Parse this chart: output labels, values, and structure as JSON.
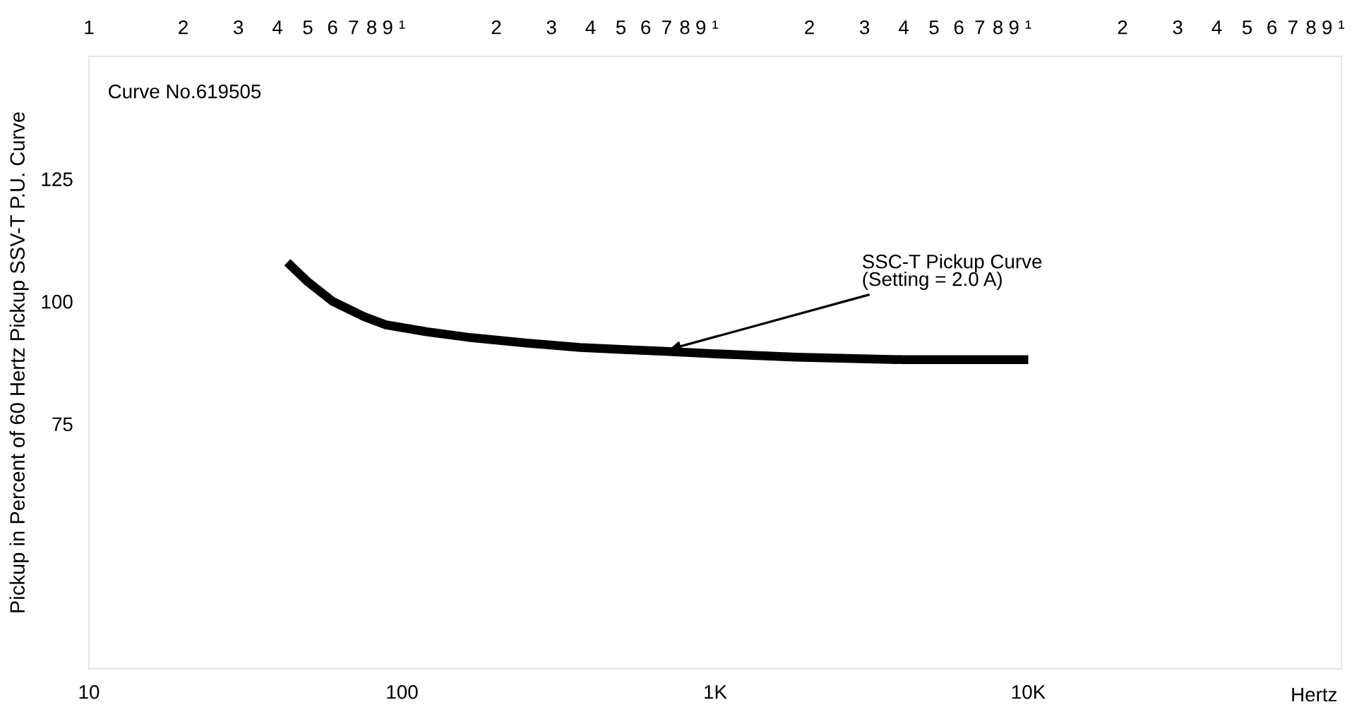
{
  "chart_data": {
    "type": "line",
    "xlabel": "Hertz",
    "ylabel": "Pickup in Percent of 60 Hertz Pickup SSV-T P.U. Curve",
    "log": "x",
    "xlim": [
      10,
      100000
    ],
    "ylim": [
      25,
      150
    ],
    "xticks": [
      10,
      {
        "value": 100,
        "label": "100"
      },
      {
        "value": 1000,
        "label": "1K"
      },
      {
        "value": 10000,
        "label": "10K"
      }
    ],
    "yticks": [
      75,
      100,
      125
    ],
    "series": [
      {
        "color": "#000000",
        "x": [
          43,
          50,
          60,
          75,
          89,
          120,
          166,
          250,
          370,
          500,
          695,
          1000,
          1820,
          4000,
          10000
        ],
        "values": [
          108,
          104,
          100,
          97,
          95.2,
          93.8,
          92.6,
          91.5,
          90.6,
          90.2,
          89.8,
          89.3,
          88.6,
          88.1,
          88.1
        ]
      }
    ],
    "annotations": [
      "Curve No.619505",
      {
        "text": "SSC-T Pickup Curve\n(Setting = 2.0 A)",
        "x": 695,
        "y": 90
      },
      "1",
      "2",
      "3",
      "4",
      "5",
      "6",
      "7",
      "8",
      "9",
      "¹",
      "2",
      "3",
      "4",
      "5",
      "6",
      "7",
      "8",
      "9",
      "¹",
      "2",
      "3",
      "4",
      "5",
      "6",
      "7",
      "8",
      "9",
      "¹",
      "2",
      "3",
      "4",
      "5",
      "6",
      "7",
      "8",
      "9",
      "¹"
    ],
    "grid": false,
    "legend": false,
    "marker": "none",
    "line_style": "solid"
  }
}
